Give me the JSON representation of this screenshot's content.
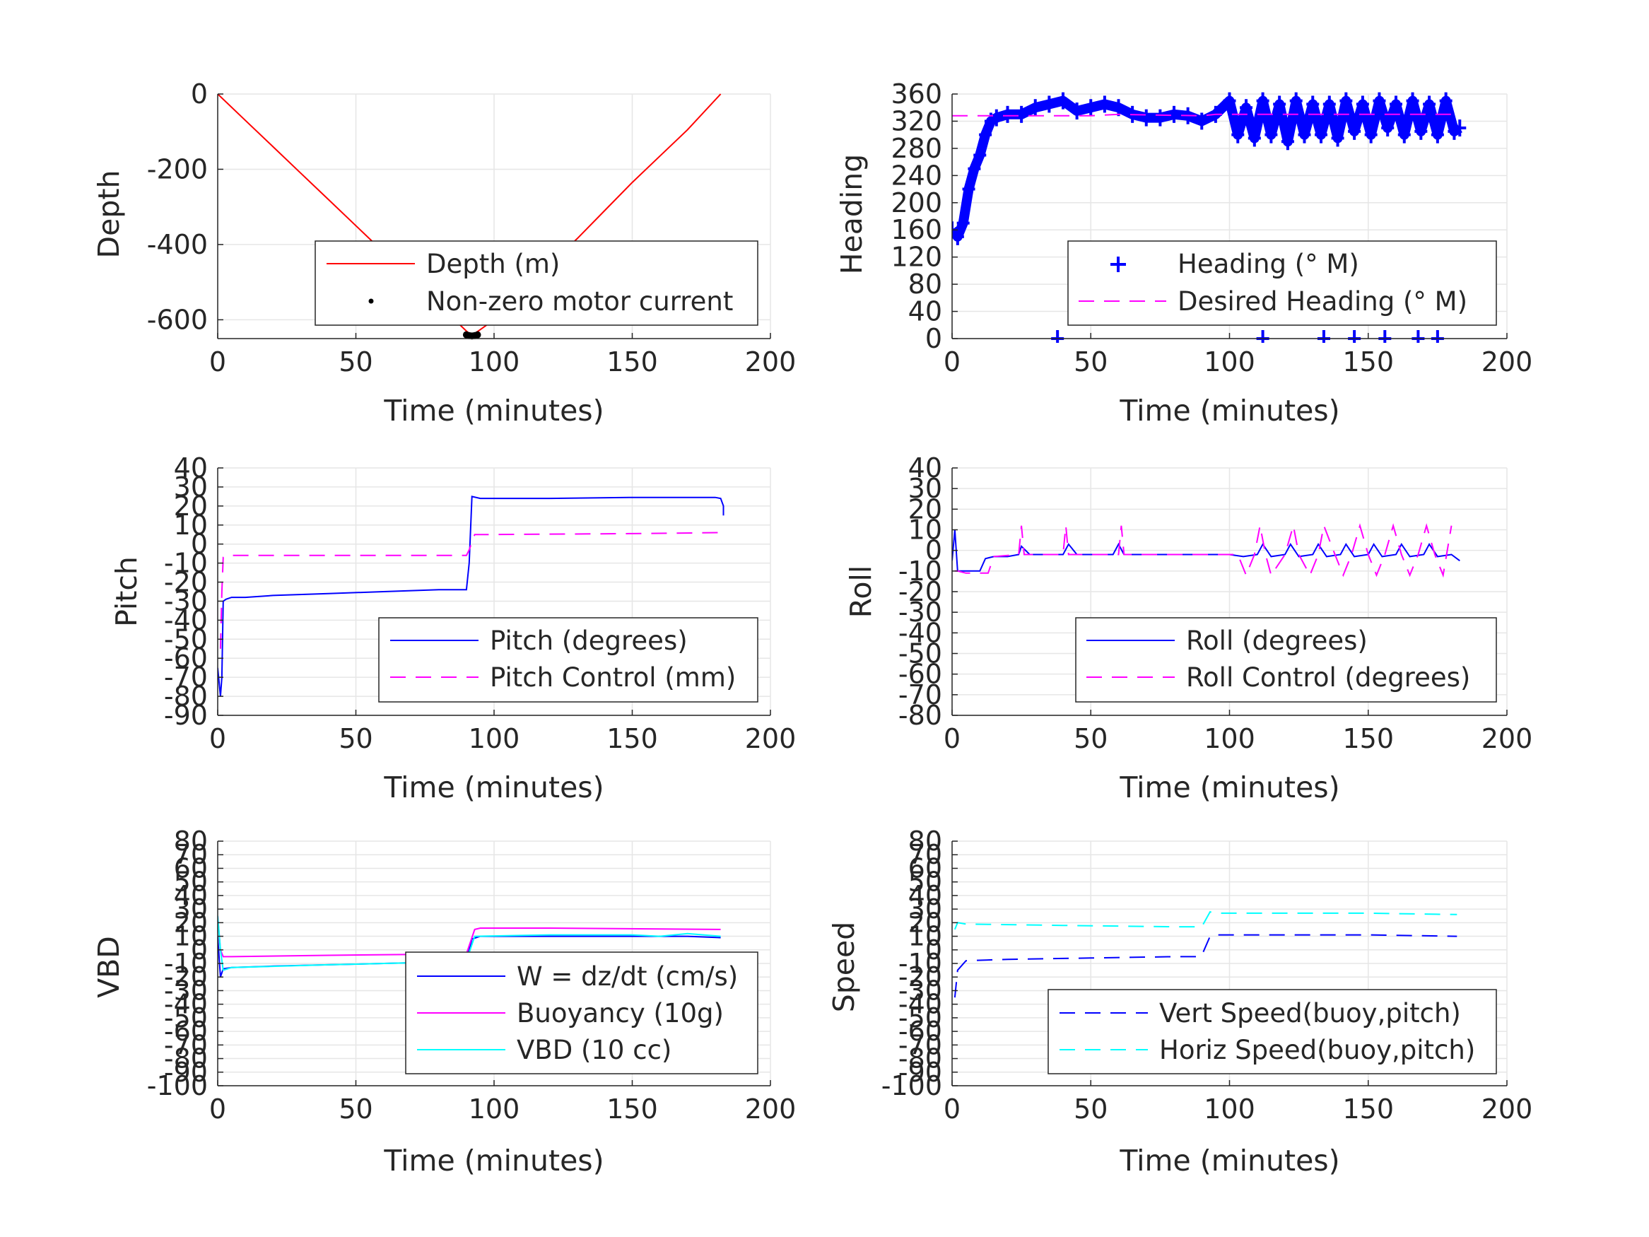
{
  "colors": {
    "blue": "#0000ff",
    "red": "#ff0000",
    "magenta": "#ff00ff",
    "cyan": "#00ffff",
    "black": "#000000",
    "grid": "#e6e6e6",
    "axis": "#262626"
  },
  "chart_data": [
    {
      "id": "depth",
      "type": "line",
      "xlabel": "Time (minutes)",
      "ylabel": "Depth",
      "xlim": [
        0,
        200
      ],
      "ylim": [
        -650,
        0
      ],
      "xticks": [
        0,
        50,
        100,
        150,
        200
      ],
      "yticks": [
        0,
        -200,
        -400,
        -600
      ],
      "grid": true,
      "legend_position": "bottom-right",
      "series": [
        {
          "name": "Depth (m)",
          "style": "solid",
          "color": "#ff0000",
          "x": [
            0,
            10,
            20,
            30,
            40,
            50,
            60,
            70,
            80,
            90,
            92,
            100,
            110,
            120,
            130,
            140,
            150,
            160,
            170,
            182
          ],
          "y": [
            0,
            -70,
            -140,
            -210,
            -280,
            -350,
            -420,
            -490,
            -560,
            -630,
            -642,
            -600,
            -530,
            -455,
            -385,
            -310,
            -235,
            -165,
            -95,
            0
          ]
        },
        {
          "name": "Non-zero motor current",
          "style": "marker-dot",
          "color": "#000000",
          "x": [
            90,
            91,
            92,
            93,
            94
          ],
          "y": [
            -640,
            -642,
            -643,
            -642,
            -640
          ]
        }
      ]
    },
    {
      "id": "heading",
      "type": "line",
      "xlabel": "Time (minutes)",
      "ylabel": "Heading",
      "xlim": [
        0,
        200
      ],
      "ylim": [
        0,
        360
      ],
      "xticks": [
        0,
        50,
        100,
        150,
        200
      ],
      "yticks": [
        0,
        40,
        80,
        120,
        160,
        200,
        240,
        280,
        320,
        360
      ],
      "grid": true,
      "legend_position": "bottom-right",
      "series": [
        {
          "name": "Heading (° M)",
          "style": "marker-plus",
          "color": "#0000ff",
          "x": [
            0,
            2,
            4,
            6,
            8,
            10,
            12,
            14,
            16,
            20,
            25,
            30,
            35,
            40,
            45,
            50,
            55,
            60,
            65,
            70,
            75,
            80,
            85,
            90,
            95,
            100,
            103,
            106,
            109,
            112,
            115,
            118,
            121,
            124,
            127,
            130,
            133,
            136,
            139,
            142,
            145,
            148,
            151,
            154,
            157,
            160,
            163,
            166,
            169,
            172,
            175,
            178,
            181,
            183,
            38,
            112,
            134,
            145,
            156,
            168,
            175
          ],
          "y": [
            160,
            150,
            170,
            220,
            250,
            270,
            300,
            320,
            325,
            330,
            330,
            340,
            345,
            350,
            335,
            340,
            345,
            340,
            330,
            325,
            325,
            330,
            328,
            320,
            330,
            350,
            300,
            340,
            295,
            350,
            300,
            345,
            290,
            350,
            300,
            345,
            300,
            345,
            295,
            350,
            305,
            345,
            300,
            350,
            310,
            345,
            300,
            350,
            305,
            345,
            300,
            350,
            305,
            310,
            0,
            0,
            0,
            0,
            0,
            0,
            0
          ]
        },
        {
          "name": "Desired Heading (° M)",
          "style": "dashed",
          "color": "#ff00ff",
          "x": [
            0,
            50,
            60,
            90,
            95,
            183
          ],
          "y": [
            328,
            328,
            330,
            328,
            330,
            330
          ]
        }
      ]
    },
    {
      "id": "pitch",
      "type": "line",
      "xlabel": "Time (minutes)",
      "ylabel": "Pitch",
      "xlim": [
        0,
        200
      ],
      "ylim": [
        -90,
        40
      ],
      "xticks": [
        0,
        50,
        100,
        150,
        200
      ],
      "yticks": [
        40,
        30,
        20,
        10,
        0,
        -10,
        -20,
        -30,
        -40,
        -50,
        -60,
        -70,
        -80,
        -90
      ],
      "grid": true,
      "legend_position": "bottom-right",
      "series": [
        {
          "name": "Pitch (degrees)",
          "style": "solid",
          "color": "#0000ff",
          "x": [
            0,
            1,
            1.5,
            2,
            3,
            5,
            10,
            20,
            40,
            60,
            80,
            90,
            91,
            92,
            95,
            120,
            150,
            180,
            182,
            183,
            183
          ],
          "y": [
            -65,
            -80,
            -70,
            -30,
            -29,
            -28,
            -28,
            -27,
            -26,
            -25,
            -24,
            -24,
            -10,
            25,
            24,
            24,
            24.5,
            24.5,
            24,
            20,
            15
          ]
        },
        {
          "name": "Pitch Control (mm)",
          "style": "dashed",
          "color": "#ff00ff",
          "x": [
            1,
            1.5,
            2,
            3,
            90,
            91,
            93,
            100,
            150,
            182
          ],
          "y": [
            -55,
            -25,
            -7,
            -6,
            -6,
            -3,
            5,
            5,
            5.5,
            6
          ]
        }
      ]
    },
    {
      "id": "roll",
      "type": "line",
      "xlabel": "Time (minutes)",
      "ylabel": "Roll",
      "xlim": [
        0,
        200
      ],
      "ylim": [
        -80,
        40
      ],
      "xticks": [
        0,
        50,
        100,
        150,
        200
      ],
      "yticks": [
        40,
        30,
        20,
        10,
        0,
        -10,
        -20,
        -30,
        -40,
        -50,
        -60,
        -70,
        -80
      ],
      "grid": true,
      "legend_position": "bottom-right",
      "series": [
        {
          "name": "Roll (degrees)",
          "style": "solid",
          "color": "#0000ff",
          "x": [
            0,
            1,
            2,
            5,
            10,
            12,
            15,
            20,
            24,
            25,
            28,
            40,
            42,
            45,
            58,
            60,
            62,
            90,
            95,
            100,
            105,
            110,
            112,
            115,
            120,
            122,
            125,
            130,
            132,
            135,
            140,
            142,
            145,
            150,
            152,
            155,
            160,
            162,
            165,
            170,
            172,
            175,
            180,
            183
          ],
          "y": [
            -5,
            10,
            -10,
            -10,
            -10,
            -4,
            -3,
            -3,
            -2,
            2,
            -2,
            -2,
            3,
            -2,
            -2,
            3,
            -2,
            -2,
            -2,
            -2,
            -3,
            -2,
            3,
            -3,
            -2,
            3,
            -3,
            -2,
            3,
            -3,
            -2,
            3,
            -3,
            -2,
            3,
            -3,
            -2,
            3,
            -3,
            -2,
            3,
            -3,
            -2,
            -5
          ]
        },
        {
          "name": "Roll Control (degrees)",
          "style": "dashed",
          "color": "#ff00ff",
          "x": [
            1,
            2,
            5,
            10,
            13,
            15,
            24,
            25,
            26,
            40,
            41,
            42,
            60,
            61,
            62,
            90,
            100,
            103,
            106,
            109,
            111,
            113,
            115,
            120,
            123,
            125,
            129,
            132,
            134,
            138,
            141,
            144,
            147,
            150,
            153,
            156,
            159,
            162,
            165,
            168,
            171,
            174,
            177,
            180
          ],
          "y": [
            -10,
            -10,
            -11,
            -11,
            -11,
            -3,
            -2,
            12,
            -2,
            -2,
            12,
            -2,
            -2,
            12,
            -2,
            -2,
            -2,
            -2,
            -12,
            -2,
            12,
            -2,
            -12,
            -2,
            12,
            -2,
            -12,
            -2,
            12,
            -2,
            -12,
            -2,
            12,
            -2,
            -12,
            -2,
            12,
            -2,
            -12,
            -2,
            12,
            -2,
            -12,
            12
          ]
        }
      ]
    },
    {
      "id": "vbd",
      "type": "line",
      "xlabel": "Time (minutes)",
      "ylabel": "VBD",
      "xlim": [
        0,
        200
      ],
      "ylim": [
        -100,
        80
      ],
      "xticks": [
        0,
        50,
        100,
        150,
        200
      ],
      "yticks": [
        80,
        70,
        60,
        50,
        40,
        30,
        20,
        10,
        0,
        -10,
        -20,
        -30,
        -40,
        -50,
        -60,
        -70,
        -80,
        -90,
        -100
      ],
      "grid": true,
      "legend_position": "bottom-right",
      "series": [
        {
          "name": "W = dz/dt (cm/s)",
          "style": "solid",
          "color": "#0000ff",
          "x": [
            0,
            1,
            2,
            5,
            20,
            40,
            60,
            80,
            90,
            92,
            95,
            120,
            150,
            170,
            182
          ],
          "y": [
            10,
            -20,
            -14,
            -13,
            -12,
            -11,
            -10,
            -9,
            -8,
            8,
            10,
            10,
            10,
            10,
            9
          ]
        },
        {
          "name": "Buoyancy (10g)",
          "style": "solid",
          "color": "#ff00ff",
          "x": [
            0,
            1,
            2,
            5,
            40,
            90,
            93,
            95,
            120,
            182
          ],
          "y": [
            25,
            0,
            -5,
            -5,
            -4,
            -3,
            15,
            16,
            16,
            15
          ]
        },
        {
          "name": "VBD (10 cc)",
          "style": "solid",
          "color": "#00ffff",
          "x": [
            0,
            1,
            2,
            5,
            40,
            80,
            90,
            93,
            120,
            150,
            160,
            170,
            182
          ],
          "y": [
            25,
            0,
            -15,
            -13,
            -11,
            -9,
            -8,
            10,
            11,
            11,
            10,
            12,
            10
          ]
        }
      ]
    },
    {
      "id": "speed",
      "type": "line",
      "xlabel": "Time (minutes)",
      "ylabel": "Speed",
      "xlim": [
        0,
        200
      ],
      "ylim": [
        -100,
        80
      ],
      "xticks": [
        0,
        50,
        100,
        150,
        200
      ],
      "yticks": [
        80,
        70,
        60,
        50,
        40,
        30,
        20,
        10,
        0,
        -10,
        -20,
        -30,
        -40,
        -50,
        -60,
        -70,
        -80,
        -90,
        -100
      ],
      "grid": true,
      "legend_position": "bottom-right",
      "series": [
        {
          "name": "Vert Speed(buoy,pitch)",
          "style": "dashed",
          "color": "#0000ff",
          "x": [
            1,
            2,
            5,
            20,
            50,
            80,
            89,
            90,
            93,
            95,
            120,
            150,
            182
          ],
          "y": [
            -35,
            -15,
            -8,
            -7,
            -6,
            -5,
            -5,
            -4,
            10,
            11,
            11,
            11,
            10
          ]
        },
        {
          "name": "Horiz Speed(buoy,pitch)",
          "style": "dashed",
          "color": "#00ffff",
          "x": [
            1,
            2,
            5,
            40,
            80,
            90,
            93,
            95,
            150,
            182
          ],
          "y": [
            15,
            20,
            19,
            18,
            17,
            17,
            28,
            27,
            27,
            26
          ]
        }
      ]
    }
  ]
}
